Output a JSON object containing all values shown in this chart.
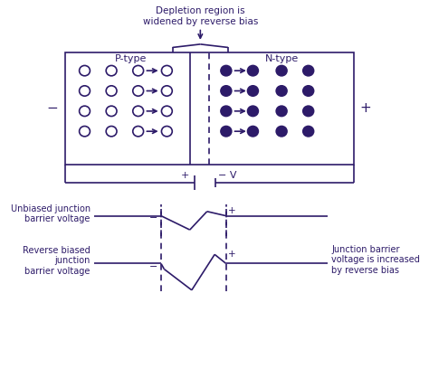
{
  "bg_color": "#ffffff",
  "text_color": "#2d1b69",
  "fig_width": 4.74,
  "fig_height": 4.08,
  "dpi": 100,
  "title": "Depletion region is\nwidened by reverse bias",
  "p_type_label": "P-type",
  "n_type_label": "N-type",
  "minus_label": "−",
  "plus_label": "+",
  "battery_plus": "+",
  "battery_minus": "− V",
  "unbiased_label": "Unbiased junction\nbarrier voltage",
  "reverse_biased_label": "Reverse biased\njunction\nbarrier voltage",
  "junction_barrier_label": "Junction barrier\nvoltage is increased\nby reverse bias"
}
